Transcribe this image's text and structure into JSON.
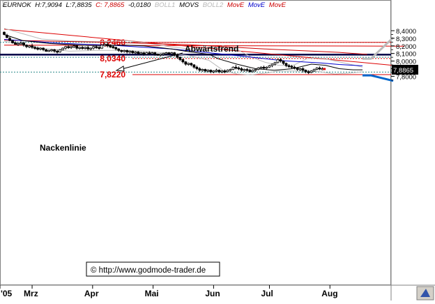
{
  "header": {
    "symbol_label": "EURNOK",
    "high_label": "H:7,9094",
    "low_label": "L:7,8835",
    "close_label": "C: 7,8865",
    "change_label": "-0,0180",
    "ind_boll1": "BOLL1",
    "ind_movs": "MOVS",
    "ind_boll2": "BOLL2",
    "ind_move1": "MovE",
    "ind_move2": "MovE",
    "ind_move3": "MovE"
  },
  "copyright": "© http://www.godmode-trader.de",
  "annotations": {
    "trend": "Abwärtstrend",
    "neckline": "Nackenlinie"
  },
  "colors": {
    "background": "#ffffff",
    "candle": "#000000",
    "boll": "#b8b8b8",
    "movs": "#000000",
    "move_blue": "#0000cc",
    "move_red": "#cc0000",
    "resistance": "#dd0000",
    "neckline": "#000044",
    "teal_dash": "#2a8a8a",
    "projection_grey": "#bbbbbb",
    "projection_blue": "#0066cc",
    "price_label_bg": "#000000"
  },
  "chart_data": {
    "type": "candlestick",
    "y_axis": {
      "ticks": [
        "8,4000",
        "8,3000",
        "8,2000",
        "8,1000",
        "8,0000",
        "7,9000",
        "7,8000"
      ],
      "tick_values": [
        8.4,
        8.3,
        8.2,
        8.1,
        8.0,
        7.9,
        7.8
      ],
      "range": [
        7.73,
        8.44
      ],
      "current_price_label": "7,8865",
      "current_price": 7.8865
    },
    "x_axis": {
      "labels": [
        "'05",
        "Mrz",
        "Apr",
        "Mai",
        "Jun",
        "Jul",
        "Aug"
      ],
      "label_days": [
        0,
        30,
        95,
        160,
        225,
        285,
        350
      ]
    },
    "levels": [
      {
        "label": "8,2460",
        "value": 8.246,
        "style": "solid",
        "color": "red"
      },
      {
        "label": "8,0340",
        "value": 8.034,
        "style": "dotted",
        "color": "red"
      },
      {
        "label": "7,8220",
        "value": 7.822,
        "style": "solid",
        "color": "red"
      }
    ],
    "neckline_value": 8.085,
    "teal_dashed_values": [
      8.246,
      8.05,
      7.855
    ],
    "downtrend_line": {
      "from": [
        0,
        8.42
      ],
      "to": [
        430,
        7.93
      ]
    },
    "upper_red_line": {
      "from": [
        0,
        8.21
      ],
      "to": [
        430,
        8.196
      ]
    },
    "ema_red": [
      [
        0,
        8.275
      ],
      [
        120,
        8.245
      ],
      [
        200,
        8.215
      ],
      [
        280,
        8.16
      ],
      [
        360,
        8.115
      ],
      [
        390,
        8.088
      ]
    ],
    "sma_blue": [
      [
        0,
        8.285
      ],
      [
        60,
        8.235
      ],
      [
        120,
        8.205
      ],
      [
        180,
        8.16
      ],
      [
        220,
        8.11
      ],
      [
        260,
        8.06
      ],
      [
        300,
        8.005
      ],
      [
        340,
        7.975
      ],
      [
        360,
        7.955
      ],
      [
        385,
        7.938
      ]
    ],
    "sma_black": [
      [
        0,
        8.35
      ],
      [
        20,
        8.27
      ],
      [
        50,
        8.23
      ],
      [
        90,
        8.205
      ],
      [
        130,
        8.21
      ],
      [
        150,
        8.2
      ],
      [
        180,
        8.16
      ],
      [
        200,
        8.12
      ],
      [
        220,
        8.09
      ],
      [
        230,
        8.03
      ],
      [
        250,
        7.96
      ],
      [
        270,
        7.9
      ],
      [
        290,
        7.88
      ],
      [
        310,
        7.9
      ],
      [
        330,
        7.96
      ],
      [
        345,
        7.945
      ],
      [
        360,
        7.9
      ],
      [
        375,
        7.885
      ],
      [
        385,
        7.885
      ]
    ],
    "boll_upper": [
      [
        0,
        8.43
      ],
      [
        20,
        8.36
      ],
      [
        40,
        8.29
      ],
      [
        70,
        8.265
      ],
      [
        100,
        8.255
      ],
      [
        130,
        8.27
      ],
      [
        150,
        8.245
      ],
      [
        180,
        8.185
      ],
      [
        200,
        8.16
      ],
      [
        220,
        8.13
      ],
      [
        235,
        8.2
      ],
      [
        250,
        8.155
      ],
      [
        265,
        8.055
      ],
      [
        280,
        7.985
      ],
      [
        295,
        7.945
      ],
      [
        310,
        7.94
      ],
      [
        325,
        8.03
      ],
      [
        335,
        8.045
      ],
      [
        345,
        8.03
      ],
      [
        360,
        7.99
      ],
      [
        375,
        7.95
      ],
      [
        385,
        7.92
      ]
    ],
    "boll_lower": [
      [
        0,
        8.26
      ],
      [
        20,
        8.22
      ],
      [
        40,
        8.17
      ],
      [
        70,
        8.13
      ],
      [
        100,
        8.14
      ],
      [
        130,
        8.14
      ],
      [
        150,
        8.13
      ],
      [
        180,
        8.1
      ],
      [
        200,
        8.07
      ],
      [
        220,
        8.01
      ],
      [
        235,
        7.88
      ],
      [
        250,
        7.83
      ],
      [
        265,
        7.82
      ],
      [
        280,
        7.84
      ],
      [
        295,
        7.87
      ],
      [
        310,
        7.87
      ],
      [
        325,
        7.87
      ],
      [
        340,
        7.86
      ],
      [
        355,
        7.83
      ],
      [
        370,
        7.84
      ],
      [
        385,
        7.86
      ]
    ],
    "projection_grey": [
      [
        385,
        8.03
      ],
      [
        394,
        8.03
      ],
      [
        418,
        8.31
      ]
    ],
    "projection_blue": [
      [
        385,
        7.812
      ],
      [
        394,
        7.812
      ],
      [
        418,
        7.74
      ]
    ],
    "candles": [
      [
        0,
        8.38,
        8.39,
        8.35,
        8.34
      ],
      [
        3,
        8.34,
        8.36,
        8.31,
        8.3
      ],
      [
        6,
        8.3,
        8.32,
        8.27,
        8.26
      ],
      [
        9,
        8.27,
        8.28,
        8.24,
        8.23
      ],
      [
        12,
        8.24,
        8.26,
        8.22,
        8.22
      ],
      [
        15,
        8.22,
        8.25,
        8.23,
        8.2
      ],
      [
        18,
        8.23,
        8.26,
        8.24,
        8.21
      ],
      [
        21,
        8.24,
        8.25,
        8.21,
        8.19
      ],
      [
        24,
        8.21,
        8.22,
        8.19,
        8.17
      ],
      [
        27,
        8.19,
        8.21,
        8.2,
        8.17
      ],
      [
        30,
        8.2,
        8.23,
        8.18,
        8.16
      ],
      [
        33,
        8.18,
        8.2,
        8.17,
        8.15
      ],
      [
        36,
        8.17,
        8.19,
        8.16,
        8.14
      ],
      [
        39,
        8.16,
        8.18,
        8.17,
        8.14
      ],
      [
        42,
        8.17,
        8.18,
        8.15,
        8.13
      ],
      [
        45,
        8.15,
        8.16,
        8.13,
        8.12
      ],
      [
        48,
        8.13,
        8.15,
        8.14,
        8.12
      ],
      [
        51,
        8.14,
        8.16,
        8.15,
        8.12
      ],
      [
        54,
        8.15,
        8.16,
        8.13,
        8.11
      ],
      [
        57,
        8.13,
        8.15,
        8.12,
        8.1
      ],
      [
        60,
        8.12,
        8.16,
        8.15,
        8.11
      ],
      [
        63,
        8.15,
        8.18,
        8.17,
        8.14
      ],
      [
        66,
        8.17,
        8.2,
        8.19,
        8.15
      ],
      [
        69,
        8.19,
        8.21,
        8.18,
        8.16
      ],
      [
        72,
        8.18,
        8.2,
        8.19,
        8.16
      ],
      [
        75,
        8.19,
        8.22,
        8.2,
        8.17
      ],
      [
        78,
        8.2,
        8.21,
        8.17,
        8.15
      ],
      [
        81,
        8.17,
        8.19,
        8.18,
        8.15
      ],
      [
        84,
        8.18,
        8.2,
        8.17,
        8.15
      ],
      [
        87,
        8.17,
        8.19,
        8.18,
        8.15
      ],
      [
        90,
        8.18,
        8.2,
        8.16,
        8.14
      ],
      [
        93,
        8.16,
        8.18,
        8.17,
        8.14
      ],
      [
        96,
        8.17,
        8.2,
        8.19,
        8.15
      ],
      [
        99,
        8.19,
        8.21,
        8.18,
        8.16
      ],
      [
        102,
        8.18,
        8.2,
        8.17,
        8.15
      ],
      [
        105,
        8.17,
        8.22,
        8.21,
        8.16
      ],
      [
        108,
        8.21,
        8.24,
        8.22,
        8.19
      ],
      [
        111,
        8.22,
        8.25,
        8.2,
        8.18
      ],
      [
        114,
        8.2,
        8.22,
        8.19,
        8.17
      ],
      [
        117,
        8.19,
        8.21,
        8.18,
        8.16
      ],
      [
        120,
        8.18,
        8.19,
        8.16,
        8.14
      ],
      [
        123,
        8.16,
        8.17,
        8.14,
        8.12
      ],
      [
        126,
        8.14,
        8.15,
        8.13,
        8.11
      ],
      [
        129,
        8.13,
        8.15,
        8.14,
        8.11
      ],
      [
        132,
        8.14,
        8.15,
        8.12,
        8.1
      ],
      [
        135,
        8.12,
        8.14,
        8.13,
        8.1
      ],
      [
        138,
        8.13,
        8.14,
        8.11,
        8.09
      ],
      [
        141,
        8.11,
        8.13,
        8.12,
        8.09
      ],
      [
        144,
        8.12,
        8.13,
        8.1,
        8.08
      ],
      [
        147,
        8.1,
        8.12,
        8.11,
        8.08
      ],
      [
        150,
        8.11,
        8.12,
        8.09,
        8.07
      ],
      [
        153,
        8.09,
        8.12,
        8.11,
        8.08
      ],
      [
        156,
        8.11,
        8.13,
        8.1,
        8.08
      ],
      [
        159,
        8.1,
        8.12,
        8.11,
        8.09
      ],
      [
        162,
        8.11,
        8.12,
        8.09,
        8.07
      ],
      [
        165,
        8.09,
        8.1,
        8.08,
        8.07
      ],
      [
        168,
        8.08,
        8.1,
        8.09,
        8.06
      ],
      [
        171,
        8.09,
        8.11,
        8.1,
        8.07
      ],
      [
        174,
        8.1,
        8.12,
        8.11,
        8.08
      ],
      [
        177,
        8.11,
        8.12,
        8.1,
        8.08
      ],
      [
        180,
        8.1,
        8.12,
        8.11,
        8.08
      ],
      [
        183,
        8.11,
        8.12,
        8.08,
        8.06
      ],
      [
        186,
        8.08,
        8.1,
        8.05,
        8.03
      ],
      [
        189,
        8.05,
        8.06,
        8.02,
        8.0
      ],
      [
        192,
        8.02,
        8.03,
        7.99,
        7.97
      ],
      [
        195,
        7.99,
        8.0,
        7.96,
        7.94
      ],
      [
        198,
        7.96,
        7.98,
        7.97,
        7.94
      ],
      [
        201,
        7.97,
        7.98,
        7.95,
        7.93
      ],
      [
        204,
        7.95,
        7.96,
        7.92,
        7.9
      ],
      [
        207,
        7.92,
        7.94,
        7.9,
        7.88
      ],
      [
        210,
        7.9,
        7.92,
        7.88,
        7.86
      ],
      [
        213,
        7.88,
        7.9,
        7.89,
        7.86
      ],
      [
        216,
        7.89,
        7.9,
        7.87,
        7.85
      ],
      [
        219,
        7.87,
        7.89,
        7.88,
        7.85
      ],
      [
        222,
        7.88,
        7.89,
        7.86,
        7.84
      ],
      [
        225,
        7.86,
        7.88,
        7.87,
        7.84
      ],
      [
        228,
        7.87,
        7.9,
        7.88,
        7.85
      ],
      [
        231,
        7.88,
        7.89,
        7.86,
        7.84
      ],
      [
        234,
        7.86,
        7.88,
        7.87,
        7.84
      ],
      [
        237,
        7.87,
        7.89,
        7.86,
        7.84
      ],
      [
        240,
        7.86,
        7.89,
        7.88,
        7.85
      ],
      [
        243,
        7.88,
        7.9,
        7.89,
        7.86
      ],
      [
        246,
        7.89,
        7.93,
        7.92,
        7.88
      ],
      [
        249,
        7.92,
        7.95,
        7.91,
        7.89
      ],
      [
        252,
        7.91,
        7.93,
        7.9,
        7.88
      ],
      [
        255,
        7.9,
        7.92,
        7.88,
        7.86
      ],
      [
        258,
        7.88,
        7.9,
        7.89,
        7.86
      ],
      [
        261,
        7.89,
        7.91,
        7.88,
        7.86
      ],
      [
        264,
        7.88,
        7.9,
        7.86,
        7.85
      ],
      [
        267,
        7.86,
        7.89,
        7.88,
        7.85
      ],
      [
        270,
        7.88,
        7.9,
        7.89,
        7.86
      ],
      [
        273,
        7.89,
        7.92,
        7.91,
        7.88
      ],
      [
        276,
        7.91,
        7.93,
        7.92,
        7.89
      ],
      [
        279,
        7.92,
        7.94,
        7.91,
        7.89
      ],
      [
        282,
        7.91,
        7.93,
        7.92,
        7.89
      ],
      [
        285,
        7.92,
        7.95,
        7.94,
        7.91
      ],
      [
        288,
        7.94,
        7.97,
        7.96,
        7.92
      ],
      [
        291,
        7.96,
        7.99,
        7.98,
        7.94
      ],
      [
        294,
        7.98,
        8.03,
        8.02,
        7.97
      ],
      [
        297,
        8.02,
        8.04,
        8.0,
        7.98
      ],
      [
        300,
        8.0,
        8.01,
        7.97,
        7.95
      ],
      [
        303,
        7.97,
        7.98,
        7.94,
        7.92
      ],
      [
        306,
        7.94,
        7.96,
        7.93,
        7.91
      ],
      [
        309,
        7.93,
        7.95,
        7.92,
        7.9
      ],
      [
        312,
        7.92,
        7.94,
        7.91,
        7.89
      ],
      [
        315,
        7.91,
        7.92,
        7.89,
        7.87
      ],
      [
        318,
        7.89,
        7.91,
        7.9,
        7.87
      ],
      [
        321,
        7.9,
        7.92,
        7.88,
        7.85
      ],
      [
        324,
        7.88,
        7.89,
        7.86,
        7.84
      ],
      [
        327,
        7.86,
        7.88,
        7.85,
        7.83
      ],
      [
        330,
        7.85,
        7.88,
        7.87,
        7.84
      ],
      [
        333,
        7.87,
        7.9,
        7.89,
        7.86
      ],
      [
        336,
        7.89,
        7.92,
        7.91,
        7.88
      ],
      [
        339,
        7.91,
        7.93,
        7.9,
        7.88
      ],
      [
        342,
        7.9,
        7.92,
        7.9,
        7.88
      ],
      [
        344,
        7.905,
        7.909,
        7.8865,
        7.8835
      ]
    ]
  }
}
